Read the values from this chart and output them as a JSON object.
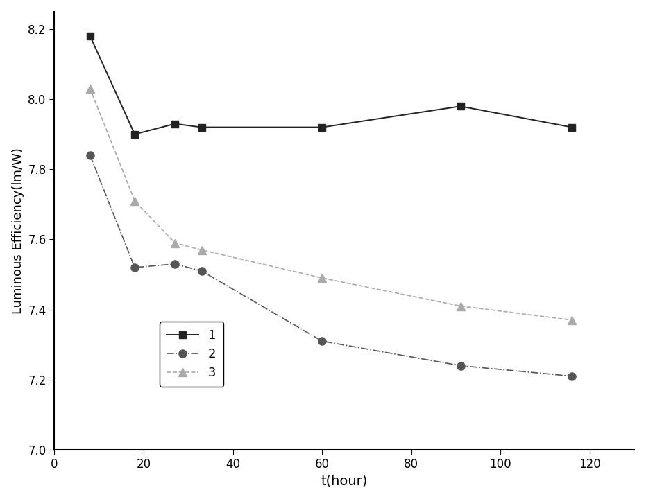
{
  "series": [
    {
      "label": "1",
      "x": [
        8,
        18,
        27,
        33,
        60,
        91,
        116
      ],
      "y": [
        8.18,
        7.9,
        7.93,
        7.92,
        7.92,
        7.98,
        7.92
      ],
      "color": "#222222",
      "marker": "s",
      "linestyle": "-",
      "markersize": 7,
      "linewidth": 1.4,
      "markerfacecolor": "#222222"
    },
    {
      "label": "2",
      "x": [
        8,
        18,
        27,
        33,
        60,
        91,
        116
      ],
      "y": [
        7.84,
        7.52,
        7.53,
        7.51,
        7.31,
        7.24,
        7.21
      ],
      "color": "#555555",
      "marker": "o",
      "linestyle": "-.",
      "markersize": 8,
      "linewidth": 1.2,
      "markerfacecolor": "#555555"
    },
    {
      "label": "3",
      "x": [
        8,
        18,
        27,
        33,
        60,
        91,
        116
      ],
      "y": [
        8.03,
        7.71,
        7.59,
        7.57,
        7.49,
        7.41,
        7.37
      ],
      "color": "#aaaaaa",
      "marker": "^",
      "linestyle": "--",
      "markersize": 8,
      "linewidth": 1.2,
      "markerfacecolor": "#aaaaaa"
    }
  ],
  "xlabel": "t(hour)",
  "ylabel": "Luminous Efficiency(lm/W)",
  "xlim": [
    0,
    130
  ],
  "ylim": [
    7.0,
    8.25
  ],
  "xticks": [
    0,
    20,
    40,
    60,
    80,
    100,
    120
  ],
  "yticks": [
    7.0,
    7.2,
    7.4,
    7.6,
    7.8,
    8.0,
    8.2
  ],
  "background_color": "#ffffff",
  "figure_facecolor": "#ffffff"
}
